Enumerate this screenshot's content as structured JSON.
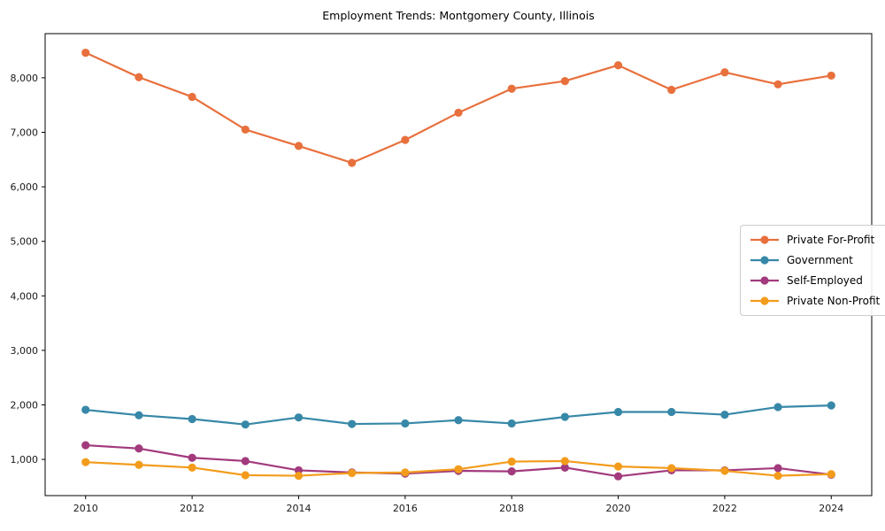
{
  "figure": {
    "title": "Employment Trends: Montgomery County, Illinois"
  },
  "chart_data": {
    "type": "line",
    "title": "Employment Trends: Montgomery County, Illinois",
    "xlabel": "",
    "ylabel": "",
    "x": [
      2010,
      2011,
      2012,
      2013,
      2014,
      2015,
      2016,
      2017,
      2018,
      2019,
      2020,
      2021,
      2022,
      2023,
      2024
    ],
    "series": [
      {
        "name": "Private For-Profit",
        "color": "#e8703d",
        "values": [
          8460,
          8010,
          7650,
          7050,
          6750,
          6440,
          6860,
          7360,
          7800,
          7940,
          8230,
          7780,
          8100,
          7880,
          8040
        ]
      },
      {
        "name": "Government",
        "color": "#3788a8",
        "values": [
          1910,
          1810,
          1740,
          1640,
          1770,
          1650,
          1660,
          1720,
          1660,
          1780,
          1870,
          1870,
          1820,
          1960,
          1990
        ]
      },
      {
        "name": "Self-Employed",
        "color": "#a23a7d",
        "values": [
          1260,
          1200,
          1030,
          970,
          800,
          760,
          740,
          790,
          780,
          850,
          690,
          800,
          800,
          840,
          720
        ]
      },
      {
        "name": "Private Non-Profit",
        "color": "#f39c1c",
        "values": [
          950,
          900,
          850,
          710,
          700,
          750,
          760,
          820,
          960,
          970,
          870,
          840,
          790,
          700,
          730
        ]
      }
    ],
    "xticks": [
      2010,
      2012,
      2014,
      2016,
      2018,
      2020,
      2022,
      2024
    ],
    "yticks": [
      1000,
      2000,
      3000,
      4000,
      5000,
      6000,
      7000,
      8000
    ],
    "xlim": [
      2009.24,
      2024.76
    ],
    "ylim": [
      336,
      8810
    ],
    "grid": false,
    "legend_position": "center right"
  }
}
